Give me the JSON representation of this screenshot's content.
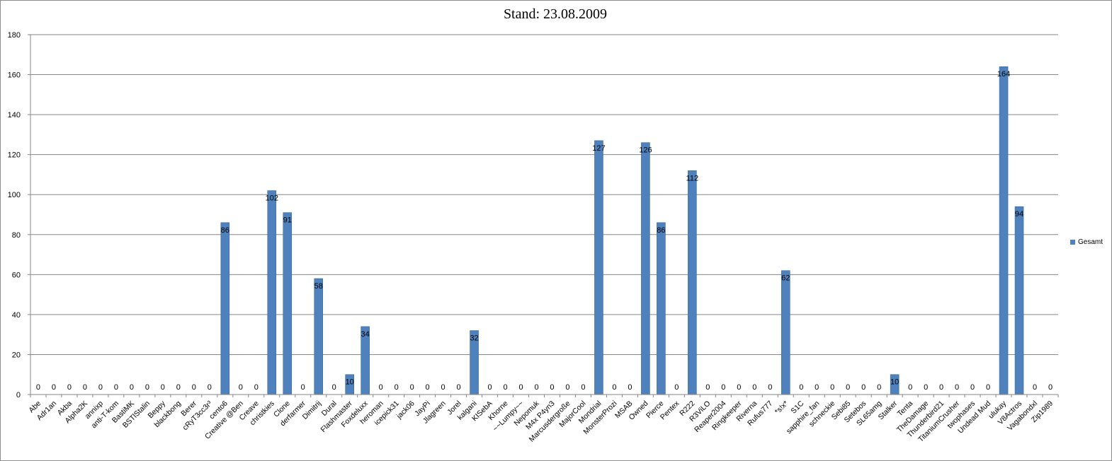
{
  "chart_data": {
    "type": "bar",
    "title": "Stand: 23.08.2009",
    "xlabel": "",
    "ylabel": "",
    "ylim": [
      0,
      180
    ],
    "yticks": [
      0,
      20,
      40,
      60,
      80,
      100,
      120,
      140,
      160,
      180
    ],
    "grid": true,
    "legend_position": "right",
    "categories": [
      "Abe",
      "Adr1an",
      "Akba",
      "Alpha2K",
      "annixp",
      "anti-T-kom",
      "BastiMK",
      "BSTlStalin",
      "Beppy",
      "blackbong",
      "Berer",
      "cRyT3cc3r³",
      "cento6",
      "Creative @Ben",
      "Creave",
      "christkies",
      "Clone",
      "derfarmer",
      "Dimitrij",
      "Dural",
      "Flashmaster",
      "Foxdeluxx",
      "heroman",
      "icepick31",
      "jack06",
      "JayPi",
      "Jlagreen",
      "Jorel",
      "kalgani",
      "KISebA",
      "Khorne",
      "~~Lumpy~~",
      "Nepomuk",
      "M4x P4yn3",
      "Marcusdergroße",
      "MajorCool",
      "Mondrial",
      "MonsterProzi",
      "MSAB",
      "Owned",
      "Pierce",
      "Pentex",
      "R222",
      "R3ViLO",
      "Reaper2004",
      "Ringkeeper",
      "Riverna",
      "Rufus777",
      "*s!x*",
      "S1C",
      "sapphire_fan",
      "schneckie",
      "Sebi85",
      "Setebos",
      "SL65amg",
      "Stalker",
      "Tenta",
      "TheDamage",
      "Thunderbird21",
      "TitaniumCrusher",
      "twophases",
      "Undead Mud",
      "ulukay",
      "V8Actros",
      "Vagabondxl",
      "Zip1989"
    ],
    "series": [
      {
        "name": "Gesamt",
        "color": "#4f81bd",
        "values": [
          0,
          0,
          0,
          0,
          0,
          0,
          0,
          0,
          0,
          0,
          0,
          0,
          86,
          0,
          0,
          102,
          91,
          0,
          58,
          0,
          10,
          34,
          0,
          0,
          0,
          0,
          0,
          0,
          32,
          0,
          0,
          0,
          0,
          0,
          0,
          0,
          127,
          0,
          0,
          126,
          86,
          0,
          112,
          0,
          0,
          0,
          0,
          0,
          62,
          0,
          0,
          0,
          0,
          0,
          0,
          10,
          0,
          0,
          0,
          0,
          0,
          0,
          164,
          94,
          0,
          0
        ]
      }
    ]
  }
}
